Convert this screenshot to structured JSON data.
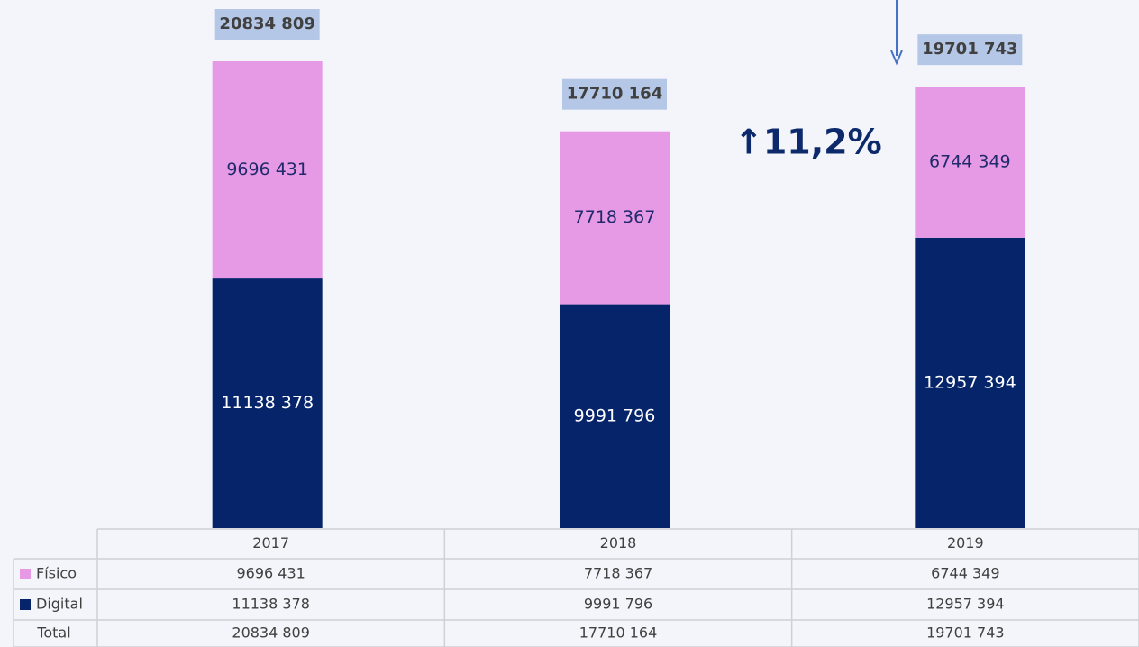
{
  "chart_data": {
    "type": "bar",
    "stacked": true,
    "categories": [
      "2017",
      "2018",
      "2019"
    ],
    "series": [
      {
        "name": "Digital",
        "color": "#06246a",
        "values": [
          11138378,
          9991796,
          12957394
        ],
        "value_labels": [
          "11138 378",
          "9991 796",
          "12957 394"
        ]
      },
      {
        "name": "Físico",
        "color": "#e699e4",
        "values": [
          9696431,
          7718367,
          6744349
        ],
        "value_labels": [
          "9696 431",
          "7718 367",
          "6744 349"
        ]
      }
    ],
    "total_name": "Total",
    "totals": [
      20834809,
      17710164,
      19701743
    ],
    "total_labels": [
      "20834 809",
      "17710 164",
      "19701 743"
    ],
    "annotation": "↑11,2%"
  }
}
